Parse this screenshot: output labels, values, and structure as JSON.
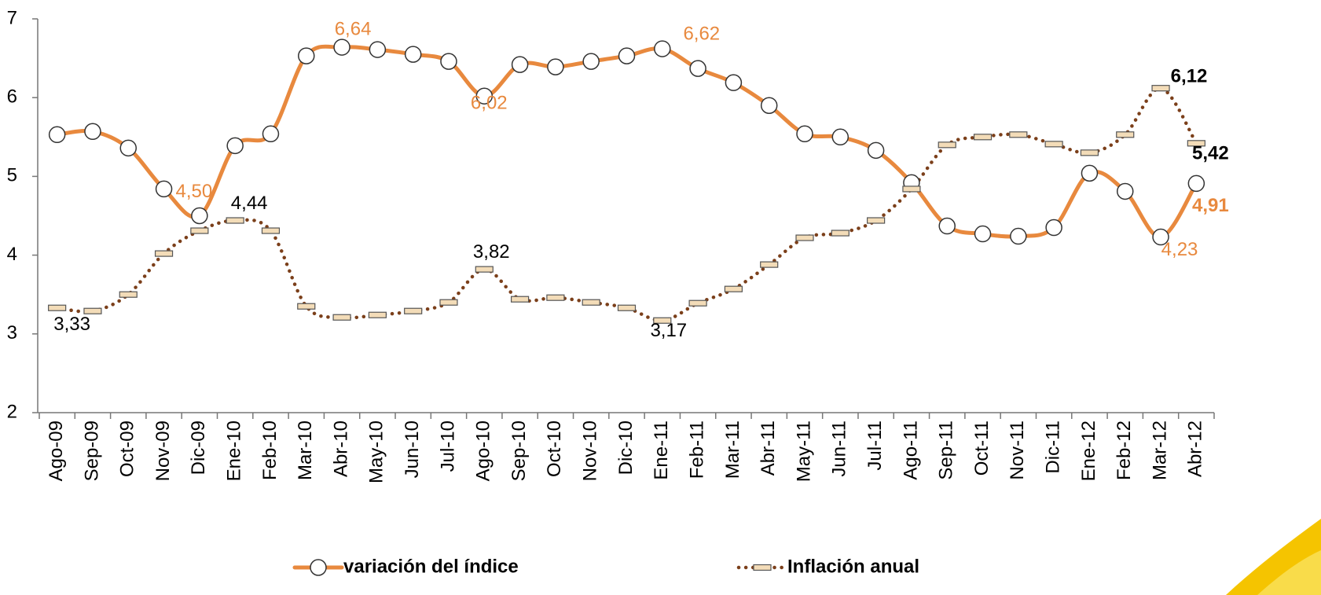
{
  "chart_data": {
    "type": "line",
    "categories": [
      "Ago-09",
      "Sep-09",
      "Oct-09",
      "Nov-09",
      "Dic-09",
      "Ene-10",
      "Feb-10",
      "Mar-10",
      "Abr-10",
      "May-10",
      "Jun-10",
      "Jul-10",
      "Ago-10",
      "Sep-10",
      "Oct-10",
      "Nov-10",
      "Dic-10",
      "Ene-11",
      "Feb-11",
      "Mar-11",
      "Abr-11",
      "May-11",
      "Jun-11",
      "Jul-11",
      "Ago-11",
      "Sep-11",
      "Oct-11",
      "Nov-11",
      "Dic-11",
      "Ene-12",
      "Feb-12",
      "Mar-12",
      "Abr-12"
    ],
    "series": [
      {
        "name": "variación del índice",
        "color": "#e8893e",
        "values": [
          5.53,
          5.57,
          5.36,
          4.84,
          4.5,
          5.39,
          5.54,
          6.53,
          6.64,
          6.61,
          6.55,
          6.46,
          6.02,
          6.42,
          6.39,
          6.46,
          6.53,
          6.62,
          6.37,
          6.19,
          5.9,
          5.54,
          5.5,
          5.33,
          4.92,
          4.37,
          4.27,
          4.24,
          4.35,
          5.04,
          4.81,
          4.23,
          4.91
        ],
        "value_labels": [
          null,
          null,
          null,
          null,
          "4,50",
          null,
          null,
          null,
          "6,64",
          null,
          null,
          null,
          "6,02",
          null,
          null,
          null,
          null,
          "6,62",
          null,
          null,
          null,
          null,
          null,
          null,
          null,
          null,
          null,
          null,
          null,
          null,
          null,
          "4,23",
          "4,91"
        ]
      },
      {
        "name": "Inflación anual",
        "color": "#7b3f1a",
        "values": [
          3.33,
          3.29,
          3.5,
          4.02,
          4.31,
          4.44,
          4.31,
          3.35,
          3.21,
          3.24,
          3.29,
          3.4,
          3.82,
          3.44,
          3.46,
          3.4,
          3.33,
          3.17,
          3.39,
          3.57,
          3.88,
          4.22,
          4.28,
          4.44,
          4.84,
          5.4,
          5.5,
          5.53,
          5.41,
          5.3,
          5.53,
          6.12,
          5.42
        ],
        "value_labels": [
          "3,33",
          null,
          null,
          null,
          null,
          "4,44",
          null,
          null,
          null,
          null,
          null,
          null,
          "3,82",
          null,
          null,
          null,
          null,
          "3,17",
          null,
          null,
          null,
          null,
          null,
          null,
          null,
          null,
          null,
          null,
          null,
          null,
          null,
          "6,12",
          "5,42"
        ]
      }
    ],
    "ylim": [
      2,
      7
    ],
    "yticks": [
      2,
      3,
      4,
      5,
      6,
      7
    ],
    "grid": false,
    "legend": "bottom"
  }
}
